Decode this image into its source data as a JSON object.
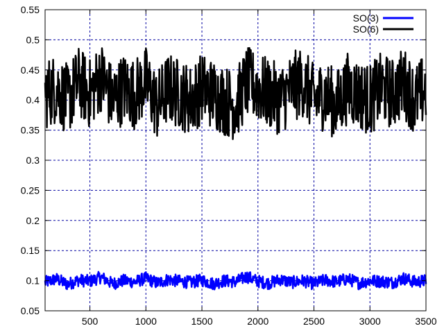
{
  "chart_data": {
    "type": "line",
    "title": "",
    "xlabel": "",
    "ylabel": "",
    "xlim": [
      100,
      3500
    ],
    "ylim": [
      0.05,
      0.55
    ],
    "xticks": [
      500,
      1000,
      1500,
      2000,
      2500,
      3000,
      3500
    ],
    "yticks": [
      0.05,
      0.1,
      0.15,
      0.2,
      0.25,
      0.3,
      0.35,
      0.4,
      0.45,
      0.5,
      0.55
    ],
    "xtick_labels": [
      "500",
      "1000",
      "1500",
      "2000",
      "2500",
      "3000",
      "3500"
    ],
    "ytick_labels": [
      "0.05",
      "0.1",
      "0.15",
      "0.2",
      "0.25",
      "0.3",
      "0.35",
      "0.4",
      "0.45",
      "0.5",
      "0.55"
    ],
    "grid": true,
    "legend_position": "top-right",
    "series": [
      {
        "name": "SO(3)",
        "color": "#0000ff",
        "x": [
          100,
          200,
          300,
          400,
          500,
          600,
          700,
          800,
          900,
          1000,
          1100,
          1200,
          1300,
          1400,
          1500,
          1600,
          1700,
          1800,
          1900,
          2000,
          2100,
          2200,
          2300,
          2400,
          2500,
          2600,
          2700,
          2800,
          2900,
          3000,
          3100,
          3200,
          3300,
          3400,
          3500
        ],
        "values": [
          0.097,
          0.103,
          0.094,
          0.101,
          0.099,
          0.106,
          0.095,
          0.1,
          0.098,
          0.104,
          0.096,
          0.102,
          0.099,
          0.097,
          0.101,
          0.095,
          0.1,
          0.098,
          0.107,
          0.099,
          0.096,
          0.102,
          0.097,
          0.1,
          0.095,
          0.101,
          0.098,
          0.103,
          0.096,
          0.1,
          0.099,
          0.097,
          0.104,
          0.098,
          0.1
        ],
        "min": 0.085,
        "max": 0.115
      },
      {
        "name": "SO(6)",
        "color": "#000000",
        "x": [
          100,
          200,
          300,
          400,
          500,
          600,
          700,
          800,
          900,
          1000,
          1100,
          1200,
          1300,
          1400,
          1500,
          1600,
          1700,
          1800,
          1900,
          2000,
          2100,
          2200,
          2300,
          2400,
          2500,
          2600,
          2700,
          2800,
          2900,
          3000,
          3100,
          3200,
          3300,
          3400,
          3500
        ],
        "values": [
          0.41,
          0.42,
          0.4,
          0.43,
          0.41,
          0.44,
          0.4,
          0.42,
          0.41,
          0.43,
          0.39,
          0.42,
          0.41,
          0.4,
          0.42,
          0.41,
          0.4,
          0.39,
          0.43,
          0.42,
          0.41,
          0.4,
          0.42,
          0.43,
          0.4,
          0.41,
          0.39,
          0.42,
          0.41,
          0.4,
          0.42,
          0.41,
          0.43,
          0.4,
          0.42
        ],
        "min": 0.335,
        "max": 0.505
      }
    ]
  }
}
